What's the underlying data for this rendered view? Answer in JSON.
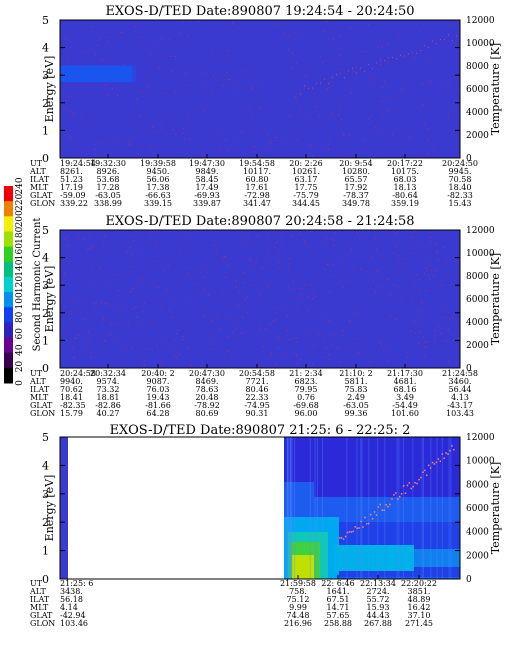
{
  "chart_data": [
    {
      "type": "heatmap",
      "title": "EXOS-D/TED   Date:890807  19:24:54 - 20:24:50",
      "ylabel": "Energy [eV]",
      "y2label": "Temperature [K]",
      "ylim": [
        0,
        5
      ],
      "y2lim": [
        0,
        12000
      ],
      "yticks": [
        "0",
        "1",
        "2",
        "3",
        "4",
        "5"
      ],
      "y2ticks": [
        "0",
        "2000",
        "4000",
        "6000",
        "8000",
        "10000",
        "12000"
      ],
      "background_color": "#3a3ad0",
      "features": [
        {
          "kind": "band",
          "x_from": 0.0,
          "x_to": 0.18,
          "y_from": 2.75,
          "y_to": 3.35,
          "color": "#1a55f0"
        }
      ],
      "table": {
        "row_labels": [
          "UT",
          "ALT",
          "ILAT",
          "MLT",
          "GLAT",
          "GLON"
        ],
        "columns": [
          [
            "19:24:54",
            "8261.",
            "51.23",
            "17.19",
            "-59.09",
            "339.22"
          ],
          [
            "19:32:30",
            "8926.",
            "53.68",
            "17.28",
            "-63.05",
            "338.99"
          ],
          [
            "19:39:58",
            "9450.",
            "56.06",
            "17.38",
            "-66.63",
            "339.15"
          ],
          [
            "19:47:30",
            "9849.",
            "58.45",
            "17.49",
            "-69.93",
            "339.87"
          ],
          [
            "19:54:58",
            "10117.",
            "60.80",
            "17.61",
            "-72.98",
            "341.47"
          ],
          [
            "20: 2:26",
            "10261.",
            "63.17",
            "17.75",
            "-75.79",
            "344.45"
          ],
          [
            "20: 9:54",
            "10280.",
            "65.57",
            "17.92",
            "-78.37",
            "349.78"
          ],
          [
            "20:17:22",
            "10175.",
            "68.03",
            "18.13",
            "-80.64",
            "359.19"
          ],
          [
            "20:24:50",
            "9945.",
            "70.58",
            "18.40",
            "-82.33",
            "15.43"
          ]
        ]
      }
    },
    {
      "type": "heatmap",
      "title": "EXOS-D/TED   Date:890807  20:24:58 - 21:24:58",
      "ylabel": "Energy [eV]",
      "y2label": "Temperature [K]",
      "ylim": [
        0,
        5
      ],
      "y2lim": [
        0,
        12000
      ],
      "yticks": [
        "0",
        "1",
        "2",
        "3",
        "4",
        "5"
      ],
      "y2ticks": [
        "0",
        "2000",
        "4000",
        "6000",
        "8000",
        "10000",
        "12000"
      ],
      "background_color": "#3a3ad0",
      "features": [],
      "table": {
        "row_labels": [
          "UT",
          "ALT",
          "ILAT",
          "MLT",
          "GLAT",
          "GLON"
        ],
        "columns": [
          [
            "20:24:58",
            "9940.",
            "70.62",
            "18.41",
            "-82.35",
            "15.79"
          ],
          [
            "20:32:34",
            "9574.",
            "73.32",
            "18.81",
            "-82.86",
            "40.27"
          ],
          [
            "20:40: 2",
            "9087.",
            "76.03",
            "19.43",
            "-81.66",
            "64.28"
          ],
          [
            "20:47:30",
            "8469.",
            "78.63",
            "20.48",
            "-78.92",
            "80.69"
          ],
          [
            "20:54:58",
            "7721.",
            "80.46",
            "22.33",
            "-74.95",
            "90.31"
          ],
          [
            "21: 2:34",
            "6823.",
            "79.95",
            "0.76",
            "-69.68",
            "96.00"
          ],
          [
            "21:10: 2",
            "5811.",
            "75.83",
            "2.49",
            "-63.05",
            "99.36"
          ],
          [
            "21:17:30",
            "4681.",
            "68.16",
            "3.49",
            "-54.49",
            "101.60"
          ],
          [
            "21:24:58",
            "3460.",
            "56.44",
            "4.13",
            "-43.17",
            "103.43"
          ]
        ]
      }
    },
    {
      "type": "heatmap",
      "title": "EXOS-D/TED   Date:890807  21:25: 6 - 22:25: 2",
      "ylabel": "Energy [eV]",
      "y2label": "Temperature [K]",
      "ylim": [
        0,
        5
      ],
      "y2lim": [
        0,
        12000
      ],
      "yticks": [
        "0",
        "1",
        "2",
        "3",
        "4",
        "5"
      ],
      "y2ticks": [
        "0",
        "2000",
        "4000",
        "6000",
        "8000",
        "10000",
        "12000"
      ],
      "background_color": "#ffffff",
      "features": [
        {
          "kind": "column",
          "x_from": 0.0,
          "x_to": 0.02,
          "color": "#3a3ad0"
        },
        {
          "kind": "spectrum",
          "x_from": 0.56,
          "x_to": 1.0
        }
      ],
      "table": {
        "row_labels": [
          "UT",
          "ALT",
          "ILAT",
          "MLT",
          "GLAT",
          "GLON"
        ],
        "columns": [
          [
            "21:25: 6",
            "3438.",
            "56.18",
            "4.14",
            "-42.94",
            "103.46"
          ],
          [
            "21:59:58",
            "758.",
            "75.12",
            "9.99",
            "74.48",
            "216.96"
          ],
          [
            "22: 6:46",
            "1641.",
            "67.51",
            "14.71",
            "57.65",
            "258.88"
          ],
          [
            "22:13:34",
            "2724.",
            "55.72",
            "15.93",
            "44.43",
            "267.88"
          ],
          [
            "22:20:22",
            "3851.",
            "48.89",
            "16.42",
            "37.10",
            "271.45"
          ]
        ]
      }
    }
  ],
  "colorbar": {
    "label": "Second Harmonic Current",
    "ticks": [
      "0",
      "20",
      "40",
      "60",
      "80",
      "100",
      "120",
      "140",
      "160",
      "180",
      "200",
      "220",
      "240"
    ],
    "colors": [
      "#000000",
      "#3a0050",
      "#6a0090",
      "#3020c0",
      "#1040f0",
      "#0090f0",
      "#00d0d0",
      "#00c080",
      "#30d020",
      "#a0e000",
      "#f0f000",
      "#f08000",
      "#f00000"
    ]
  }
}
